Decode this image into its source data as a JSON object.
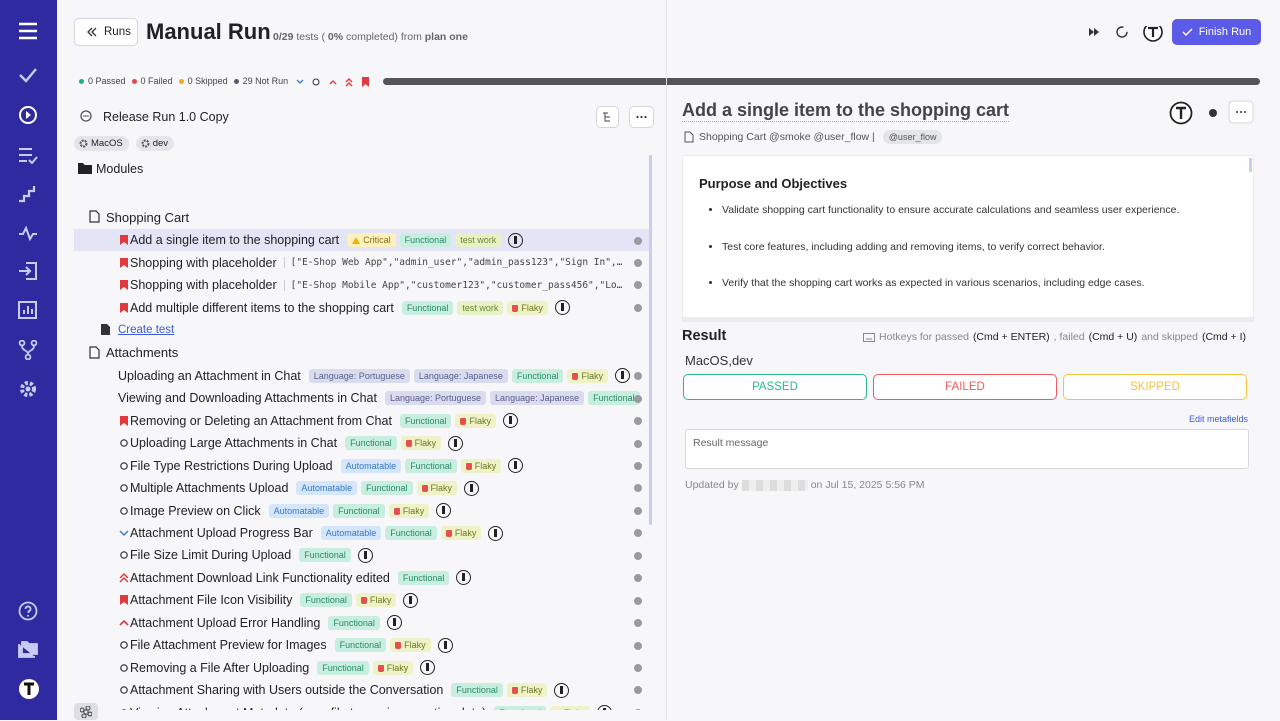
{
  "header": {
    "back": "Runs",
    "title": "Manual Run",
    "summary": {
      "count": "0/29",
      "tests": "tests (",
      "percent": "0%",
      "completed": "completed) from",
      "plan": "plan one"
    },
    "finish": "Finish Run"
  },
  "status": [
    {
      "text": "0 Passed",
      "color": "#22b07d"
    },
    {
      "text": "0 Failed",
      "color": "#e5484d"
    },
    {
      "text": "0 Skipped",
      "color": "#f5a623"
    },
    {
      "text": "29 Not Run",
      "color": "#555a66"
    }
  ],
  "tree": {
    "run": "Release Run 1.0 Copy",
    "run_tags": [
      "MacOS",
      "dev"
    ],
    "root": "Modules",
    "suites": [
      {
        "title": "Shopping Cart",
        "tests": [
          {
            "title": "Add a single item to the shopping cart",
            "icon": "flag",
            "selected": true,
            "tags": [
              {
                "text": "Critical",
                "bg": "#fcf1bd",
                "fg": "#8a6d10",
                "warn": true
              },
              {
                "text": "Functional",
                "bg": "#c8eedf",
                "fg": "#2a8b66"
              },
              {
                "text": "test work",
                "bg": "#e6f1c6",
                "fg": "#6a8a2e"
              }
            ],
            "avatar": true
          },
          {
            "title": "Shopping with placeholder",
            "icon": "flag",
            "params": "[\"E-Shop Web App\",\"admin_user\",\"admin_pass123\",\"Sign In\",\"Admin Dash"
          },
          {
            "title": "Shopping with placeholder",
            "icon": "flag",
            "params": "[\"E-Shop Mobile App\",\"customer123\",\"customer_pass456\",\"Log In\",\"Welc"
          },
          {
            "title": "Add multiple different items to the shopping cart",
            "icon": "flag",
            "tags": [
              {
                "text": "Functional",
                "bg": "#c8eedf",
                "fg": "#2a8b66"
              },
              {
                "text": "test work",
                "bg": "#e6f1c6",
                "fg": "#6a8a2e"
              },
              {
                "text": "Flaky",
                "bg": "#eef2c6",
                "fg": "#6a7a22",
                "flaky": true
              }
            ],
            "avatar": true
          }
        ],
        "create": "Create test"
      },
      {
        "title": "Attachments",
        "tests": [
          {
            "title": "Uploading an Attachment in Chat",
            "icon": "double-up",
            "tags": [
              {
                "text": "Language: Portuguese",
                "bg": "#d9dbef",
                "fg": "#5a5f8a"
              },
              {
                "text": "Language: Japanese",
                "bg": "#d9dbef",
                "fg": "#5a5f8a"
              },
              {
                "text": "Functional",
                "bg": "#c8eedf",
                "fg": "#2a8b66"
              },
              {
                "text": "Flaky",
                "bg": "#eef2c6",
                "fg": "#6a7a22",
                "flaky": true
              }
            ],
            "avatar": true
          },
          {
            "title": "Viewing and Downloading Attachments in Chat",
            "icon": "up",
            "tags": [
              {
                "text": "Language: Portuguese",
                "bg": "#d9dbef",
                "fg": "#5a5f8a"
              },
              {
                "text": "Language: Japanese",
                "bg": "#d9dbef",
                "fg": "#5a5f8a"
              },
              {
                "text": "Functional",
                "bg": "#c8eedf",
                "fg": "#2a8b66"
              }
            ]
          },
          {
            "title": "Removing or Deleting an Attachment from Chat",
            "icon": "flag",
            "tags": [
              {
                "text": "Functional",
                "bg": "#c8eedf",
                "fg": "#2a8b66"
              },
              {
                "text": "Flaky",
                "bg": "#eef2c6",
                "fg": "#6a7a22",
                "flaky": true
              }
            ],
            "avatar": true
          },
          {
            "title": "Uploading Large Attachments in Chat",
            "icon": "circle",
            "tags": [
              {
                "text": "Functional",
                "bg": "#c8eedf",
                "fg": "#2a8b66"
              },
              {
                "text": "Flaky",
                "bg": "#eef2c6",
                "fg": "#6a7a22",
                "flaky": true
              }
            ],
            "avatar": true
          },
          {
            "title": "File Type Restrictions During Upload",
            "icon": "circle",
            "tags": [
              {
                "text": "Automatable",
                "bg": "#d3e6fb",
                "fg": "#3b78c0"
              },
              {
                "text": "Functional",
                "bg": "#c8eedf",
                "fg": "#2a8b66"
              },
              {
                "text": "Flaky",
                "bg": "#eef2c6",
                "fg": "#6a7a22",
                "flaky": true
              }
            ],
            "avatar": true
          },
          {
            "title": "Multiple Attachments Upload",
            "icon": "circle",
            "tags": [
              {
                "text": "Automatable",
                "bg": "#d3e6fb",
                "fg": "#3b78c0"
              },
              {
                "text": "Functional",
                "bg": "#c8eedf",
                "fg": "#2a8b66"
              },
              {
                "text": "Flaky",
                "bg": "#eef2c6",
                "fg": "#6a7a22",
                "flaky": true
              }
            ],
            "avatar": true
          },
          {
            "title": "Image Preview on Click",
            "icon": "circle",
            "tags": [
              {
                "text": "Automatable",
                "bg": "#d3e6fb",
                "fg": "#3b78c0"
              },
              {
                "text": "Functional",
                "bg": "#c8eedf",
                "fg": "#2a8b66"
              },
              {
                "text": "Flaky",
                "bg": "#eef2c6",
                "fg": "#6a7a22",
                "flaky": true
              }
            ],
            "avatar": true
          },
          {
            "title": "Attachment Upload Progress Bar",
            "icon": "down",
            "tags": [
              {
                "text": "Automatable",
                "bg": "#d3e6fb",
                "fg": "#3b78c0"
              },
              {
                "text": "Functional",
                "bg": "#c8eedf",
                "fg": "#2a8b66"
              },
              {
                "text": "Flaky",
                "bg": "#eef2c6",
                "fg": "#6a7a22",
                "flaky": true
              }
            ],
            "avatar": true
          },
          {
            "title": "File Size Limit During Upload",
            "icon": "circle",
            "tags": [
              {
                "text": "Functional",
                "bg": "#c8eedf",
                "fg": "#2a8b66"
              }
            ],
            "avatar": true
          },
          {
            "title": "Attachment Download Link Functionality edited",
            "icon": "double-up",
            "tags": [
              {
                "text": "Functional",
                "bg": "#c8eedf",
                "fg": "#2a8b66"
              }
            ],
            "avatar": true
          },
          {
            "title": "Attachment File Icon Visibility",
            "icon": "flag",
            "tags": [
              {
                "text": "Functional",
                "bg": "#c8eedf",
                "fg": "#2a8b66"
              },
              {
                "text": "Flaky",
                "bg": "#eef2c6",
                "fg": "#6a7a22",
                "flaky": true
              }
            ],
            "avatar": true
          },
          {
            "title": "Attachment Upload Error Handling",
            "icon": "up",
            "tags": [
              {
                "text": "Functional",
                "bg": "#c8eedf",
                "fg": "#2a8b66"
              }
            ],
            "avatar": true
          },
          {
            "title": "File Attachment Preview for Images",
            "icon": "circle",
            "tags": [
              {
                "text": "Functional",
                "bg": "#c8eedf",
                "fg": "#2a8b66"
              },
              {
                "text": "Flaky",
                "bg": "#eef2c6",
                "fg": "#6a7a22",
                "flaky": true
              }
            ],
            "avatar": true
          },
          {
            "title": "Removing a File After Uploading",
            "icon": "circle",
            "tags": [
              {
                "text": "Functional",
                "bg": "#c8eedf",
                "fg": "#2a8b66"
              },
              {
                "text": "Flaky",
                "bg": "#eef2c6",
                "fg": "#6a7a22",
                "flaky": true
              }
            ],
            "avatar": true
          },
          {
            "title": "Attachment Sharing with Users outside the Conversation",
            "icon": "circle",
            "tags": [
              {
                "text": "Functional",
                "bg": "#c8eedf",
                "fg": "#2a8b66"
              },
              {
                "text": "Flaky",
                "bg": "#eef2c6",
                "fg": "#6a7a22",
                "flaky": true
              }
            ],
            "avatar": true
          },
          {
            "title": "Viewing Attachment Metadata (e.g., file type, size, creation date)",
            "icon": "circle",
            "tags": [
              {
                "text": "Functional",
                "bg": "#c8eedf",
                "fg": "#2a8b66"
              },
              {
                "text": "Flaky",
                "bg": "#eef2c6",
                "fg": "#6a7a22",
                "flaky": true
              }
            ],
            "avatar": true
          }
        ]
      }
    ]
  },
  "detail": {
    "title": "Add a single item to the shopping cart",
    "breadcrumb": "Shopping Cart @smoke @user_flow |",
    "tag": "@user_flow",
    "heading": "Purpose and Objectives",
    "bullets": [
      "Validate shopping cart functionality to ensure accurate calculations and seamless user experience.",
      "Test core features, including adding and removing items, to verify correct behavior.",
      "Verify that the shopping cart works as expected in various scenarios, including edge cases."
    ],
    "result": {
      "label": "Result",
      "hotkeys": [
        "Hotkeys for passed",
        "(Cmd + ENTER)",
        ", failed",
        "(Cmd + U)",
        "and skipped",
        "(Cmd + I)"
      ],
      "environment": "MacOS,dev",
      "buttons": [
        {
          "text": "PASSED",
          "color": "#2eb886"
        },
        {
          "text": "FAILED",
          "color": "#ee5a5e"
        },
        {
          "text": "SKIPPED",
          "color": "#f7c23e"
        }
      ],
      "metafields": "Edit metafields",
      "placeholder": "Result message",
      "updated_by": "Updated by",
      "updated_on": "on Jul 15, 2025 5:56 PM"
    }
  }
}
